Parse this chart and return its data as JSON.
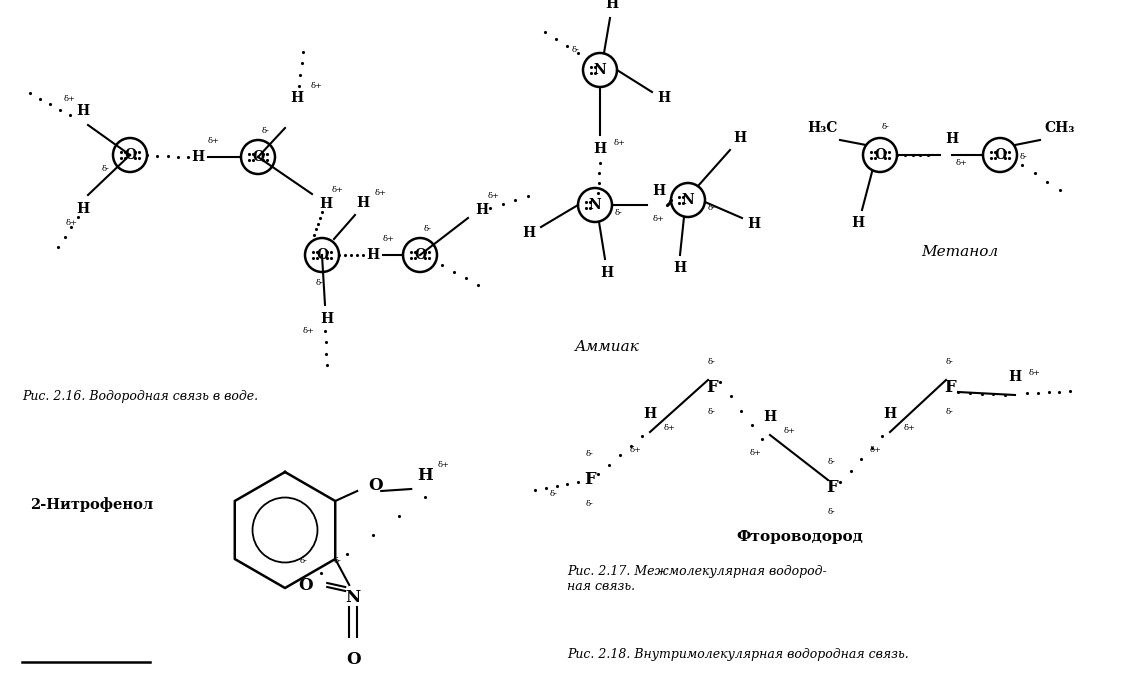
{
  "bg_color": "#ffffff",
  "fig_width": 11.3,
  "fig_height": 6.92,
  "dpi": 100,
  "captions": {
    "fig16": "Рис. 2.16. Водородная связь в воде.",
    "fig17": "Рис. 2.17. Межмолекулярная водород-\nная связь.",
    "fig18": "Рис. 2.18. Внутримолекулярная водородная связь.",
    "ammiak": "Аммиак",
    "metanol": "Метанол",
    "ftoro": "Фтороводород",
    "nitro": "2-Нитрофенол"
  },
  "xlim": [
    0,
    1130
  ],
  "ylim": [
    0,
    692
  ]
}
